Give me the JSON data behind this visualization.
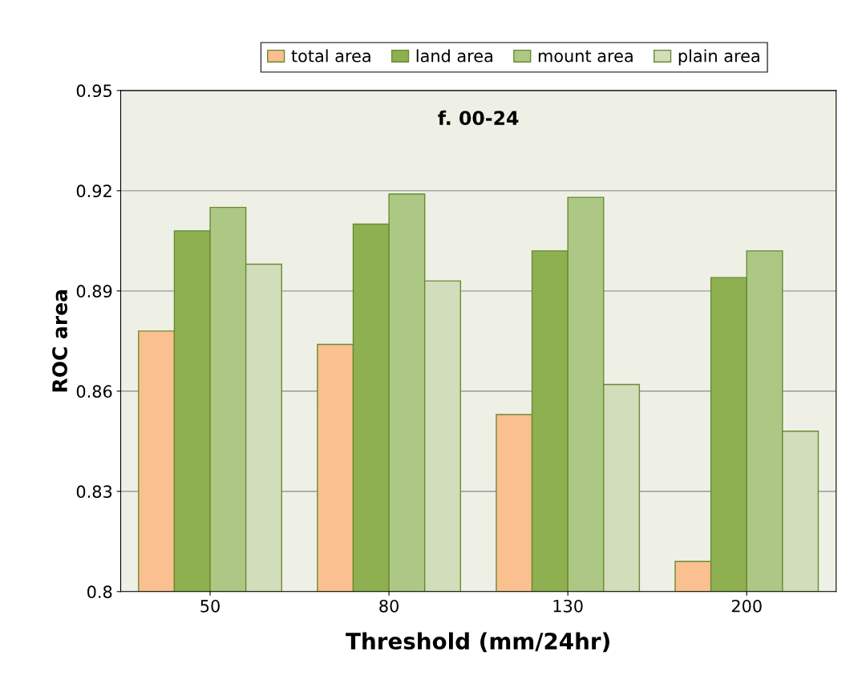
{
  "chart_data": {
    "type": "bar",
    "title": "f. 00-24",
    "xlabel": "Threshold (mm/24hr)",
    "ylabel": "ROC area",
    "categories": [
      "50",
      "80",
      "130",
      "200"
    ],
    "series": [
      {
        "name": "total area",
        "color": "#fac090",
        "values": [
          0.878,
          0.874,
          0.853,
          0.809
        ]
      },
      {
        "name": "land area",
        "color": "#8eb050",
        "values": [
          0.908,
          0.91,
          0.902,
          0.894
        ]
      },
      {
        "name": "mount area",
        "color": "#adc885",
        "values": [
          0.915,
          0.919,
          0.918,
          0.902
        ]
      },
      {
        "name": "plain area",
        "color": "#d2ddbb",
        "values": [
          0.898,
          0.893,
          0.862,
          0.848
        ]
      }
    ],
    "ylim": [
      0.8,
      0.95
    ],
    "yticks": [
      0.8,
      0.83,
      0.86,
      0.89,
      0.92,
      0.95
    ],
    "grid": "y",
    "legend": "top"
  }
}
